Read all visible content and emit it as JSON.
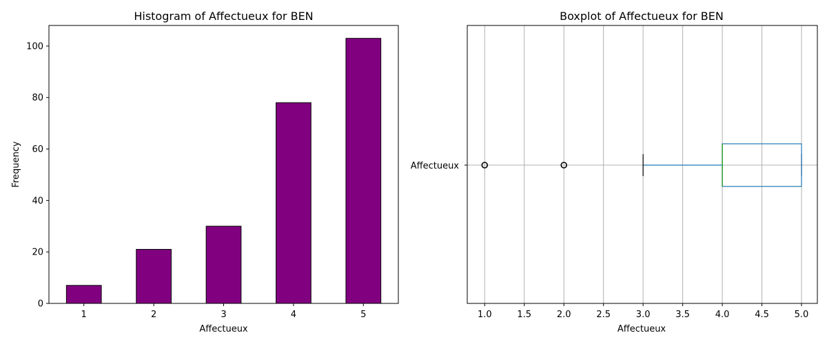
{
  "chart_data": [
    {
      "type": "bar",
      "title": "Histogram of Affectueux for BEN",
      "xlabel": "Affectueux",
      "ylabel": "Frequency",
      "categories": [
        "1",
        "2",
        "3",
        "4",
        "5"
      ],
      "values": [
        7,
        21,
        30,
        78,
        103
      ],
      "ylim": [
        0,
        108
      ],
      "yticks": [
        0,
        20,
        40,
        60,
        80,
        100
      ],
      "bar_color": "#800080",
      "edge_color": "#000000",
      "grid": false
    },
    {
      "type": "boxplot",
      "title": "Boxplot of Affectueux for BEN",
      "xlabel": "Affectueux",
      "category": "Affectueux",
      "xlim": [
        0.78,
        5.2
      ],
      "xticks": [
        1.0,
        1.5,
        2.0,
        2.5,
        3.0,
        3.5,
        4.0,
        4.5,
        5.0
      ],
      "whisker_low": 3.0,
      "q1": 4.0,
      "median": 4.0,
      "q3": 5.0,
      "whisker_high": 5.0,
      "outliers": [
        1.0,
        2.0
      ],
      "box_color": "#1f77b4",
      "median_color": "#2ca02c",
      "grid": true
    }
  ]
}
